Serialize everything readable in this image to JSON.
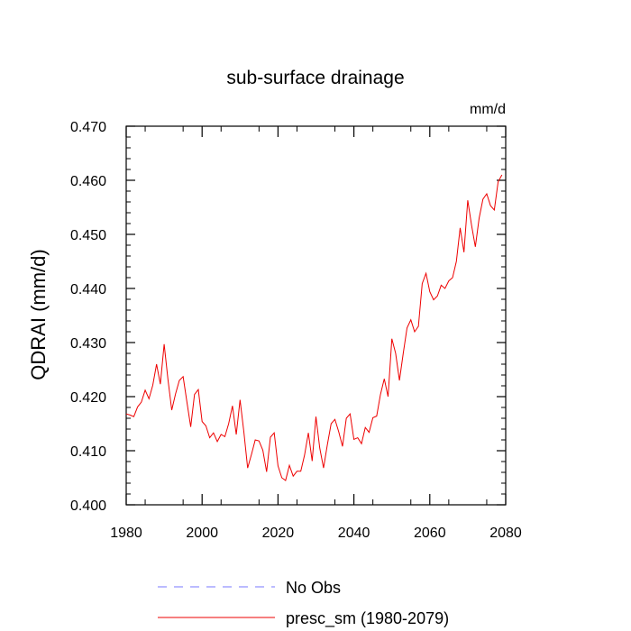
{
  "chart_data": {
    "type": "line",
    "title": "sub-surface drainage",
    "units_label": "mm/d",
    "xlabel": "",
    "ylabel": "QDRAI  (mm/d)",
    "xlim": [
      1980,
      2080
    ],
    "ylim": [
      0.4,
      0.47
    ],
    "x_ticks": [
      1980,
      2000,
      2020,
      2040,
      2060,
      2080
    ],
    "x_tick_labels": [
      "1980",
      "2000",
      "2020",
      "2040",
      "2060",
      "2080"
    ],
    "y_ticks": [
      0.4,
      0.41,
      0.42,
      0.43,
      0.44,
      0.45,
      0.46,
      0.47
    ],
    "y_tick_labels": [
      "0.400",
      "0.410",
      "0.420",
      "0.430",
      "0.440",
      "0.450",
      "0.460",
      "0.470"
    ],
    "grid": false,
    "legend_position": "bottom",
    "legend": [
      {
        "label": "No Obs",
        "color": "#7777ff",
        "dashed": true
      },
      {
        "label": "presc_sm (1980-2079)",
        "color": "#ee0000",
        "dashed": false
      }
    ],
    "series": [
      {
        "name": "presc_sm (1980-2079)",
        "color": "#ee0000",
        "x": [
          1980,
          1981,
          1982,
          1983,
          1984,
          1985,
          1986,
          1987,
          1988,
          1989,
          1990,
          1991,
          1992,
          1993,
          1994,
          1995,
          1996,
          1997,
          1998,
          1999,
          2000,
          2001,
          2002,
          2003,
          2004,
          2005,
          2006,
          2007,
          2008,
          2009,
          2010,
          2011,
          2012,
          2013,
          2014,
          2015,
          2016,
          2017,
          2018,
          2019,
          2020,
          2021,
          2022,
          2023,
          2024,
          2025,
          2026,
          2027,
          2028,
          2029,
          2030,
          2031,
          2032,
          2033,
          2034,
          2035,
          2036,
          2037,
          2038,
          2039,
          2040,
          2041,
          2042,
          2043,
          2044,
          2045,
          2046,
          2047,
          2048,
          2049,
          2050,
          2051,
          2052,
          2053,
          2054,
          2055,
          2056,
          2057,
          2058,
          2059,
          2060,
          2061,
          2062,
          2063,
          2064,
          2065,
          2066,
          2067,
          2068,
          2069,
          2070,
          2071,
          2072,
          2073,
          2074,
          2075,
          2076,
          2077,
          2078,
          2079
        ],
        "y": [
          0.4168,
          0.4166,
          0.4163,
          0.4181,
          0.419,
          0.4212,
          0.4196,
          0.4221,
          0.426,
          0.4223,
          0.4297,
          0.4232,
          0.4175,
          0.4205,
          0.423,
          0.4237,
          0.419,
          0.4144,
          0.4204,
          0.4213,
          0.4154,
          0.4146,
          0.4124,
          0.4133,
          0.4117,
          0.413,
          0.4126,
          0.415,
          0.4183,
          0.413,
          0.4194,
          0.4135,
          0.4068,
          0.4093,
          0.412,
          0.4118,
          0.4101,
          0.4061,
          0.4125,
          0.4133,
          0.4072,
          0.405,
          0.4045,
          0.4073,
          0.4053,
          0.4062,
          0.4062,
          0.4092,
          0.4133,
          0.4081,
          0.4163,
          0.4105,
          0.4068,
          0.4111,
          0.415,
          0.4158,
          0.4135,
          0.4108,
          0.416,
          0.4168,
          0.4121,
          0.4124,
          0.4113,
          0.4143,
          0.4134,
          0.4161,
          0.4164,
          0.4204,
          0.4233,
          0.42,
          0.4307,
          0.428,
          0.423,
          0.428,
          0.4327,
          0.4342,
          0.432,
          0.433,
          0.4409,
          0.4428,
          0.4394,
          0.4379,
          0.4386,
          0.4406,
          0.44,
          0.4414,
          0.442,
          0.445,
          0.4512,
          0.4467,
          0.4563,
          0.4517,
          0.4477,
          0.453,
          0.4565,
          0.4575,
          0.4553,
          0.4545,
          0.4597,
          0.461
        ]
      }
    ]
  }
}
